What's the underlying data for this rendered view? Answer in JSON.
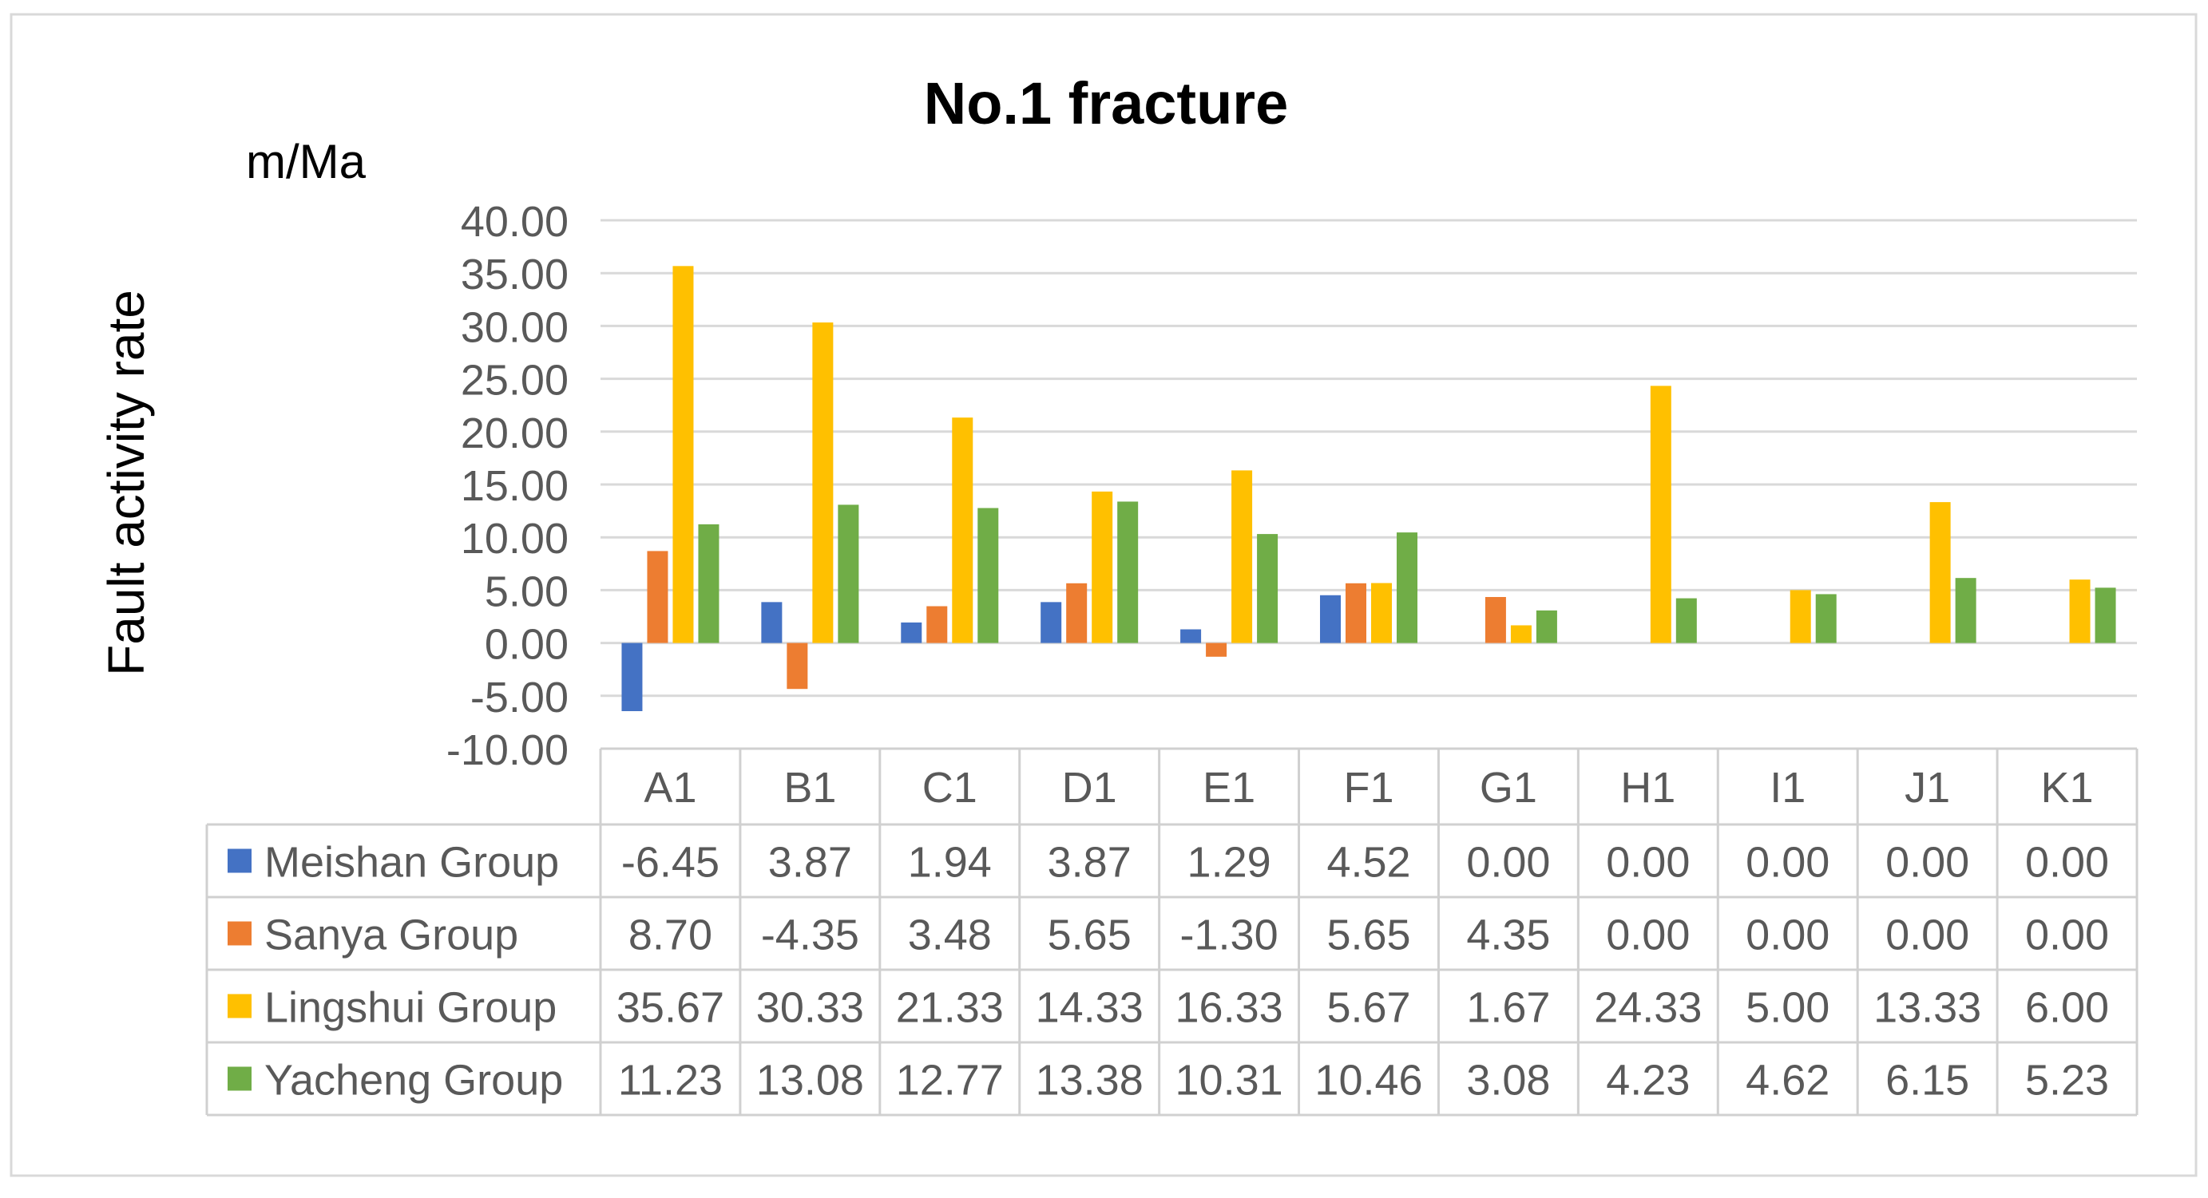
{
  "chart_data": {
    "type": "bar",
    "title": "No.1 fracture",
    "ylabel": "Fault activity rate",
    "yunit": "m/Ma",
    "xlabel": "",
    "ylim": [
      -10,
      40
    ],
    "ystep": 5,
    "ytick_decimals": 2,
    "grid": true,
    "legend": "data-table-left",
    "categories": [
      "A1",
      "B1",
      "C1",
      "D1",
      "E1",
      "F1",
      "G1",
      "H1",
      "I1",
      "J1",
      "K1"
    ],
    "series": [
      {
        "name": "Meishan Group",
        "color": "#4472c4",
        "values": [
          -6.45,
          3.87,
          1.94,
          3.87,
          1.29,
          4.52,
          0.0,
          0.0,
          0.0,
          0.0,
          0.0
        ]
      },
      {
        "name": "Sanya Group",
        "color": "#ed7d31",
        "values": [
          8.7,
          -4.35,
          3.48,
          5.65,
          -1.3,
          5.65,
          4.35,
          0.0,
          0.0,
          0.0,
          0.0
        ]
      },
      {
        "name": "Lingshui Group",
        "color": "#ffc000",
        "values": [
          35.67,
          30.33,
          21.33,
          14.33,
          16.33,
          5.67,
          1.67,
          24.33,
          5.0,
          13.33,
          6.0
        ]
      },
      {
        "name": "Yacheng Group",
        "color": "#70ad47",
        "values": [
          11.23,
          13.08,
          12.77,
          13.38,
          10.31,
          10.46,
          3.08,
          4.23,
          4.62,
          6.15,
          5.23
        ]
      }
    ]
  }
}
